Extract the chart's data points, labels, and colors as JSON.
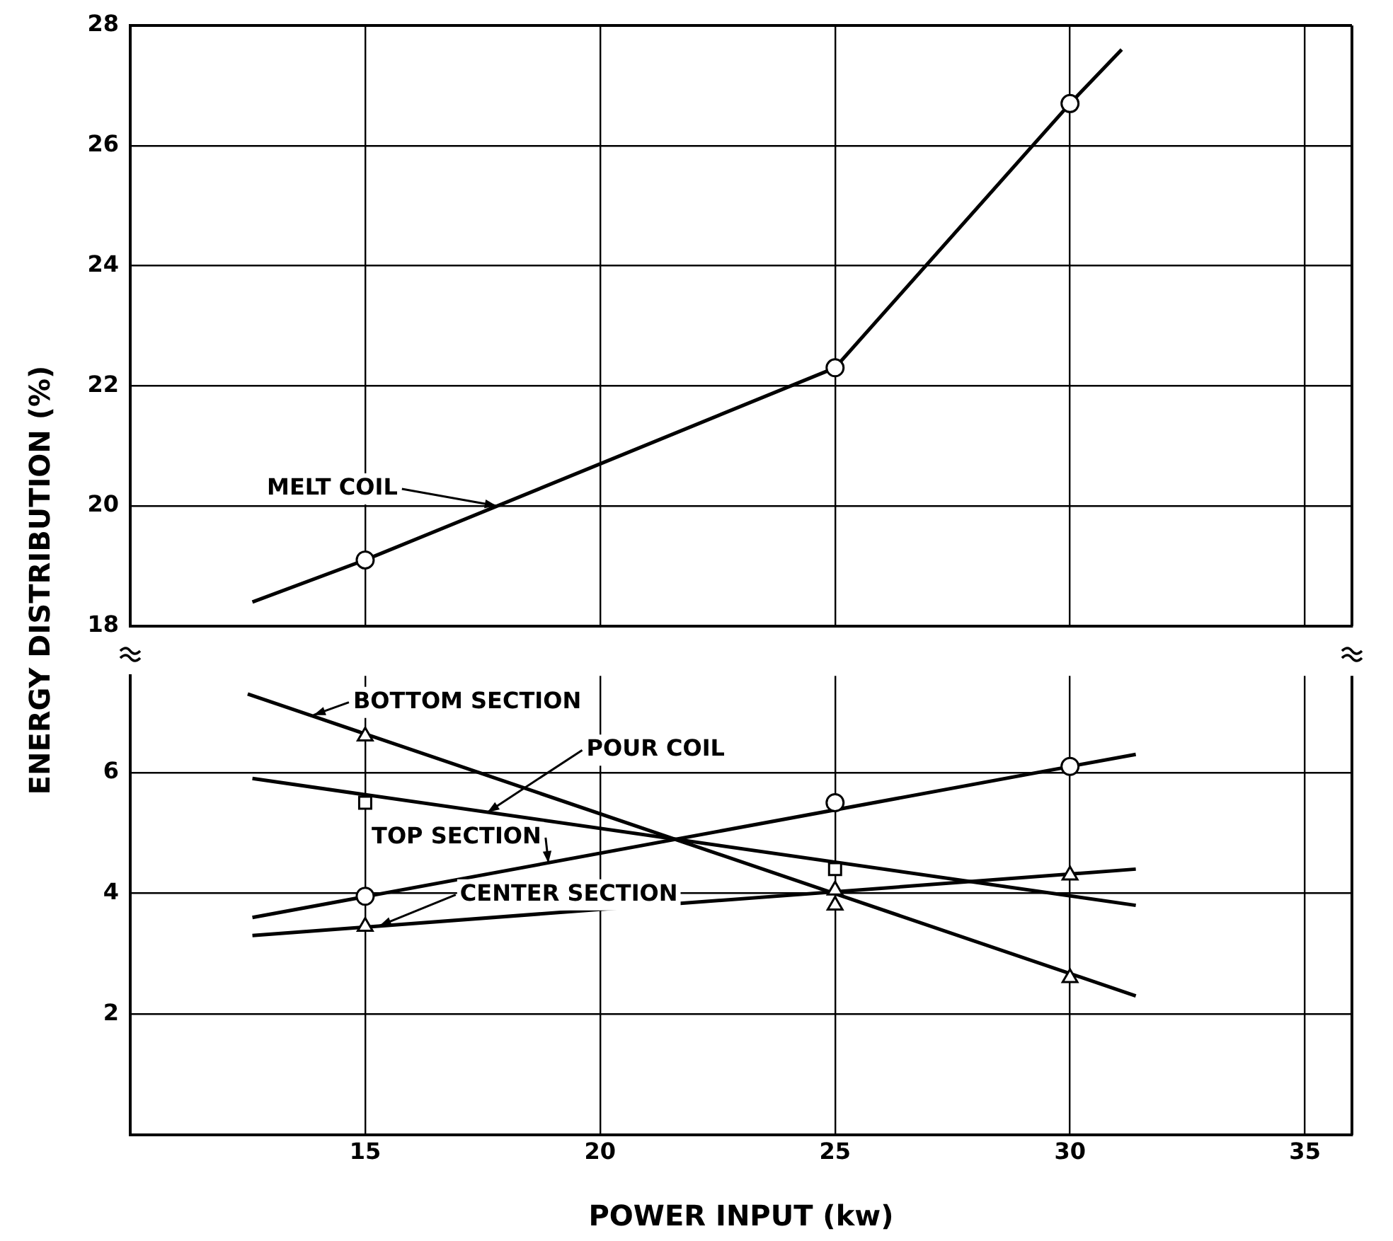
{
  "chart_data": [
    {
      "type": "scatter",
      "ylabel": "ENERGY DISTRIBUTION (%)",
      "xlim": [
        10,
        36
      ],
      "xticks": [
        15,
        20,
        25,
        30,
        35
      ],
      "ylim": [
        18,
        28
      ],
      "yticks": [
        18,
        20,
        22,
        24,
        26,
        28
      ],
      "grid": true,
      "tick_labels": "y",
      "series": [
        {
          "type": "line",
          "color": "#000000",
          "marker": "none",
          "x": [
            12.6,
            15,
            25,
            30,
            31.1
          ],
          "values": [
            18.4,
            19.1,
            22.3,
            26.7,
            27.6
          ]
        },
        {
          "type": "scatter",
          "color": "#000000",
          "marker": "circle",
          "x": [
            15,
            25,
            30
          ],
          "values": [
            19.1,
            22.3,
            26.7
          ]
        }
      ],
      "annotations": [
        {
          "text": "MELT COIL",
          "x": 17.8,
          "y": 20.0
        }
      ]
    },
    {
      "type": "scatter",
      "xlabel": "POWER INPUT (kw)",
      "xlim": [
        10,
        36
      ],
      "xticks": [
        15,
        20,
        25,
        30,
        35
      ],
      "ylim": [
        0,
        7.6
      ],
      "yticks": [
        2,
        4,
        6
      ],
      "grid": true,
      "series": [
        {
          "type": "line",
          "color": "#000000",
          "marker": "none",
          "x": [
            12.5,
            31.4
          ],
          "values": [
            7.3,
            2.3
          ]
        },
        {
          "type": "line",
          "color": "#000000",
          "marker": "none",
          "x": [
            12.6,
            31.4
          ],
          "values": [
            5.9,
            3.8
          ]
        },
        {
          "type": "line",
          "color": "#000000",
          "marker": "none",
          "x": [
            12.6,
            31.4
          ],
          "values": [
            3.6,
            6.3
          ]
        },
        {
          "type": "line",
          "color": "#000000",
          "marker": "none",
          "x": [
            12.6,
            31.4
          ],
          "values": [
            3.3,
            4.4
          ]
        },
        {
          "type": "scatter",
          "color": "#000000",
          "marker": "triangle",
          "x": [
            15,
            25,
            30
          ],
          "values": [
            6.6,
            3.8,
            2.6
          ]
        },
        {
          "type": "scatter",
          "color": "#000000",
          "marker": "square",
          "x": [
            15,
            25
          ],
          "values": [
            5.5,
            4.4
          ]
        },
        {
          "type": "scatter",
          "color": "#000000",
          "marker": "circle",
          "x": [
            15,
            25,
            30
          ],
          "values": [
            3.95,
            5.5,
            6.1
          ]
        },
        {
          "type": "scatter",
          "color": "#000000",
          "marker": "triangle",
          "x": [
            15,
            25,
            30
          ],
          "values": [
            3.45,
            4.05,
            4.3
          ]
        }
      ],
      "annotations": [
        {
          "text": "BOTTOM SECTION",
          "x": 13.9,
          "y": 6.95
        },
        {
          "text": "POUR COIL",
          "x": 17.6,
          "y": 5.34
        },
        {
          "text": "TOP SECTION",
          "x": 18.9,
          "y": 4.5
        },
        {
          "text": "CENTER SECTION",
          "x": 15.3,
          "y": 3.46
        }
      ]
    }
  ]
}
